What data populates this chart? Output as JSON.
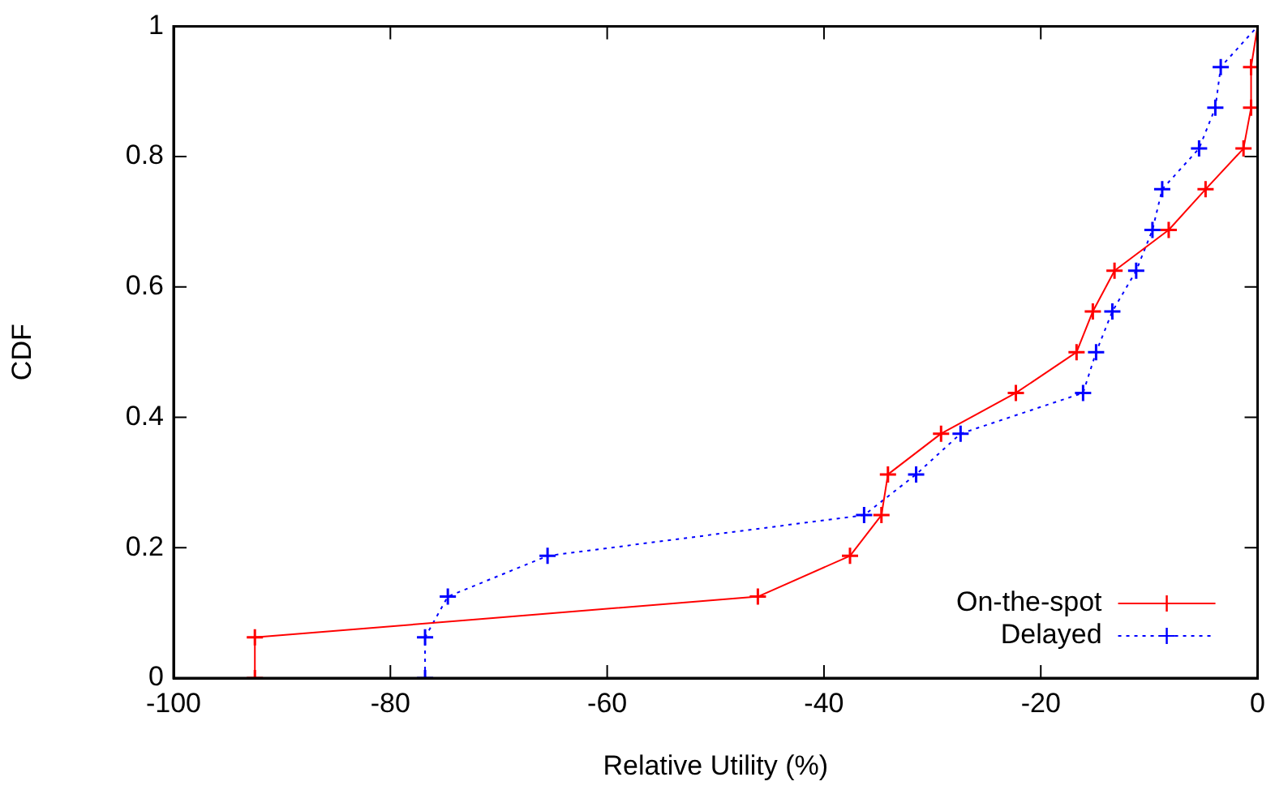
{
  "chart_data": {
    "type": "line",
    "xlabel": "Relative Utility (%)",
    "ylabel": "CDF",
    "xlim": [
      -100,
      0
    ],
    "xticks": [
      -100,
      -80,
      -60,
      -40,
      -20,
      0
    ],
    "ylim": [
      0,
      1
    ],
    "yticks": [
      0,
      0.2,
      0.4,
      0.6,
      0.8,
      1
    ],
    "grid": false,
    "legend": "bottom right",
    "series": [
      {
        "name": "On-the-spot",
        "color": "#ff0000",
        "marker": "cross",
        "line_style": "solid",
        "x": [
          -92.5,
          -92.5,
          -46.1,
          -37.6,
          -34.7,
          -34.1,
          -29.2,
          -22.3,
          -16.7,
          -15.2,
          -13.2,
          -8.2,
          -4.8,
          -1.3,
          -0.6,
          -0.6,
          0
        ],
        "values": [
          0,
          0.0625,
          0.125,
          0.1875,
          0.25,
          0.3125,
          0.375,
          0.4375,
          0.5,
          0.5625,
          0.625,
          0.6875,
          0.75,
          0.8125,
          0.875,
          0.9375,
          1
        ]
      },
      {
        "name": "Delayed",
        "color": "#0000ff",
        "marker": "cross",
        "line_style": "dotted",
        "x": [
          -76.8,
          -76.8,
          -74.7,
          -65.5,
          -36.3,
          -31.5,
          -27.4,
          -16.1,
          -14.9,
          -13.4,
          -11.2,
          -9.7,
          -8.8,
          -5.4,
          -3.9,
          -3.4,
          0
        ],
        "values": [
          0,
          0.0625,
          0.125,
          0.1875,
          0.25,
          0.3125,
          0.375,
          0.4375,
          0.5,
          0.5625,
          0.625,
          0.6875,
          0.75,
          0.8125,
          0.875,
          0.9375,
          1
        ]
      }
    ]
  }
}
